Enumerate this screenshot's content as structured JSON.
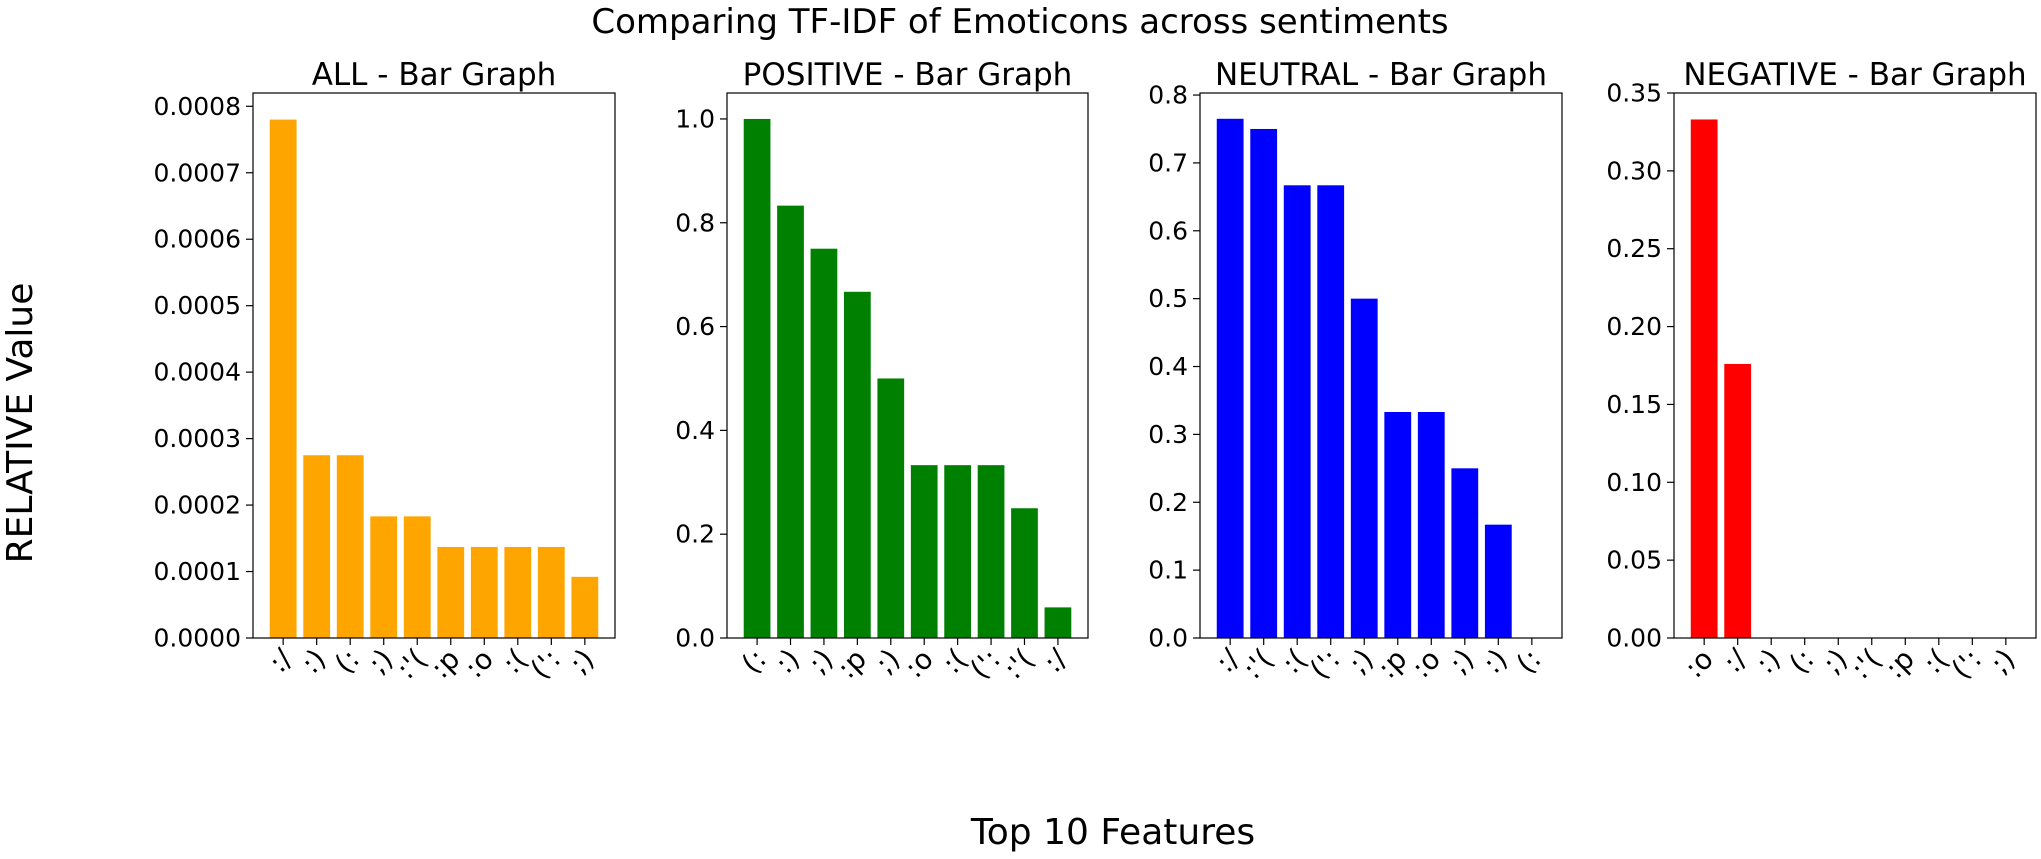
{
  "figure": {
    "title": "Comparing TF-IDF of Emoticons across sentiments",
    "xlabel": "Top 10 Features",
    "ylabel": "RELATIVE Value"
  },
  "chart_data": [
    {
      "type": "bar",
      "title": "ALL - Bar Graph",
      "color": "#ffa500",
      "categories": [
        ":/",
        ":)",
        "(:",
        ";)",
        ":'(",
        ":p",
        ":o",
        ":(",
        "(':",
        ";)"
      ],
      "values": [
        0.00078,
        0.000275,
        0.000275,
        0.000183,
        0.000183,
        0.000137,
        0.000137,
        0.000137,
        0.000137,
        9.2e-05
      ],
      "ylim": [
        0,
        0.00082
      ],
      "yticks": [
        "0.0000",
        "0.0001",
        "0.0002",
        "0.0003",
        "0.0004",
        "0.0005",
        "0.0006",
        "0.0007",
        "0.0008"
      ],
      "ytick_values": [
        0,
        0.0001,
        0.0002,
        0.0003,
        0.0004,
        0.0005,
        0.0006,
        0.0007,
        0.0008
      ]
    },
    {
      "type": "bar",
      "title": "POSITIVE - Bar Graph",
      "color": "#008000",
      "categories": [
        "(:",
        ":)",
        ";)",
        ":p",
        ";)",
        ":o",
        ":(",
        "(':",
        ":'(",
        ":/"
      ],
      "values": [
        1.0,
        0.833,
        0.75,
        0.667,
        0.5,
        0.333,
        0.333,
        0.333,
        0.25,
        0.059
      ],
      "ylim": [
        0,
        1.05
      ],
      "yticks": [
        "0.0",
        "0.2",
        "0.4",
        "0.6",
        "0.8",
        "1.0"
      ],
      "ytick_values": [
        0,
        0.2,
        0.4,
        0.6,
        0.8,
        1.0
      ]
    },
    {
      "type": "bar",
      "title": "NEUTRAL - Bar Graph",
      "color": "#0000ff",
      "categories": [
        ":/",
        ":'(",
        ":(",
        "(':",
        ";)",
        ":p",
        ":o",
        ";)",
        ":)",
        "(:"
      ],
      "values": [
        0.765,
        0.75,
        0.667,
        0.667,
        0.5,
        0.333,
        0.333,
        0.25,
        0.167,
        0
      ],
      "ylim": [
        0,
        0.803
      ],
      "yticks": [
        "0.0",
        "0.1",
        "0.2",
        "0.3",
        "0.4",
        "0.5",
        "0.6",
        "0.7",
        "0.8"
      ],
      "ytick_values": [
        0,
        0.1,
        0.2,
        0.3,
        0.4,
        0.5,
        0.6,
        0.7,
        0.8
      ]
    },
    {
      "type": "bar",
      "title": "NEGATIVE - Bar Graph",
      "color": "#ff0000",
      "categories": [
        ":o",
        ":/",
        ":)",
        "(:",
        ";)",
        ":'(",
        ":p",
        ":(",
        "(':",
        ";)"
      ],
      "values": [
        0.333,
        0.176,
        0,
        0,
        0,
        0,
        0,
        0,
        0,
        0
      ],
      "ylim": [
        0,
        0.35
      ],
      "yticks": [
        "0.00",
        "0.05",
        "0.10",
        "0.15",
        "0.20",
        "0.25",
        "0.30",
        "0.35"
      ],
      "ytick_values": [
        0,
        0.05,
        0.1,
        0.15,
        0.2,
        0.25,
        0.3,
        0.35
      ]
    }
  ]
}
